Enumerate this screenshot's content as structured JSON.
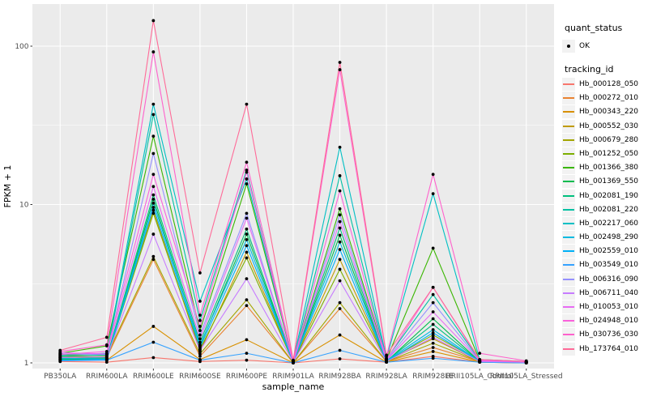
{
  "chart_data": {
    "type": "line",
    "title": "",
    "xlabel": "sample_name",
    "ylabel": "FPKM + 1",
    "y_scale": "log10",
    "y_ticks": [
      1,
      10,
      100
    ],
    "y_minor_ticks": [
      3.162,
      31.623
    ],
    "ylim": [
      0.95,
      160
    ],
    "grid": "on",
    "legend_position": "right",
    "categories": [
      "PB350LA",
      "RRIM600LA",
      "RRIM600LE",
      "RRIM600SE",
      "RRIM600PE",
      "RRIM901LA",
      "RRIM928BA",
      "RRIM928LA",
      "RRIM928LE",
      "RRII105LA_Control",
      "RRII105LA_Stressed"
    ],
    "series": [
      {
        "name": "Hb_000128_050",
        "color": "#F8766D",
        "values": [
          1.02,
          1.01,
          1.08,
          1.02,
          1.04,
          1.0,
          1.06,
          1.01,
          1.1,
          1.01,
          1.0
        ]
      },
      {
        "name": "Hb_000272_010",
        "color": "#EA8331",
        "values": [
          1.05,
          1.08,
          4.5,
          1.1,
          2.3,
          1.0,
          2.2,
          1.02,
          1.25,
          1.02,
          1.0
        ]
      },
      {
        "name": "Hb_000343_220",
        "color": "#D89000",
        "values": [
          1.08,
          1.04,
          1.7,
          1.05,
          1.4,
          1.0,
          1.5,
          1.01,
          1.18,
          1.01,
          1.0
        ]
      },
      {
        "name": "Hb_000552_030",
        "color": "#C09B00",
        "values": [
          1.1,
          1.09,
          9.2,
          1.18,
          5.0,
          1.01,
          4.5,
          1.03,
          1.42,
          1.02,
          1.01
        ]
      },
      {
        "name": "Hb_000679_280",
        "color": "#A3A500",
        "values": [
          1.12,
          1.11,
          4.7,
          1.14,
          2.5,
          1.0,
          2.4,
          1.02,
          1.33,
          1.02,
          1.0
        ]
      },
      {
        "name": "Hb_001252_050",
        "color": "#7CAE00",
        "values": [
          1.09,
          1.07,
          8.8,
          1.22,
          4.6,
          1.01,
          3.9,
          1.03,
          1.5,
          1.03,
          1.01
        ]
      },
      {
        "name": "Hb_001366_380",
        "color": "#39B600",
        "values": [
          1.15,
          1.28,
          27.0,
          1.6,
          13.5,
          1.02,
          9.4,
          1.05,
          5.3,
          1.04,
          1.02
        ]
      },
      {
        "name": "Hb_001369_550",
        "color": "#00BB4E",
        "values": [
          1.05,
          1.06,
          10.8,
          1.28,
          6.5,
          1.01,
          6.4,
          1.02,
          1.9,
          1.02,
          1.0
        ]
      },
      {
        "name": "Hb_002081_190",
        "color": "#00BF7D",
        "values": [
          1.06,
          1.08,
          11.5,
          1.35,
          7.0,
          1.01,
          7.1,
          1.03,
          1.75,
          1.02,
          1.01
        ]
      },
      {
        "name": "Hb_002081_220",
        "color": "#00C1A3",
        "values": [
          1.1,
          1.12,
          37.0,
          1.85,
          16.5,
          1.02,
          15.2,
          1.06,
          2.7,
          1.04,
          1.02
        ]
      },
      {
        "name": "Hb_002217_060",
        "color": "#00BFC4",
        "values": [
          1.12,
          1.15,
          43.0,
          2.45,
          14.5,
          1.03,
          23.0,
          1.07,
          11.7,
          1.05,
          1.02
        ]
      },
      {
        "name": "Hb_002498_290",
        "color": "#00BAE0",
        "values": [
          1.07,
          1.06,
          10.2,
          1.3,
          6.0,
          1.01,
          5.8,
          1.03,
          1.62,
          1.02,
          1.01
        ]
      },
      {
        "name": "Hb_002559_010",
        "color": "#00B0F6",
        "values": [
          1.04,
          1.05,
          9.6,
          1.25,
          5.5,
          1.01,
          5.2,
          1.02,
          1.55,
          1.02,
          1.0
        ]
      },
      {
        "name": "Hb_003549_010",
        "color": "#35A2FF",
        "values": [
          1.03,
          1.04,
          1.35,
          1.04,
          1.15,
          1.0,
          1.2,
          1.01,
          1.07,
          1.01,
          1.0
        ]
      },
      {
        "name": "Hb_006316_090",
        "color": "#9590FF",
        "values": [
          1.14,
          1.13,
          21.0,
          1.5,
          8.8,
          1.02,
          8.6,
          1.04,
          2.4,
          1.03,
          1.01
        ]
      },
      {
        "name": "Hb_006711_040",
        "color": "#C77CFF",
        "values": [
          1.08,
          1.09,
          6.5,
          1.2,
          3.4,
          1.01,
          3.3,
          1.02,
          1.45,
          1.02,
          1.01
        ]
      },
      {
        "name": "Hb_010053_010",
        "color": "#E76BF3",
        "values": [
          1.16,
          1.14,
          13.0,
          1.42,
          8.2,
          1.02,
          7.8,
          1.04,
          2.1,
          1.03,
          1.01
        ]
      },
      {
        "name": "Hb_024948_010",
        "color": "#FA62DB",
        "values": [
          1.13,
          1.18,
          15.5,
          1.7,
          16.0,
          1.02,
          12.2,
          1.05,
          3.0,
          1.04,
          1.02
        ]
      },
      {
        "name": "Hb_030736_030",
        "color": "#FF61CC",
        "values": [
          1.18,
          1.3,
          92.0,
          2.0,
          18.5,
          1.03,
          71.0,
          1.1,
          15.5,
          1.15,
          1.03
        ]
      },
      {
        "name": "Hb_173764_010",
        "color": "#FF6A98",
        "values": [
          1.2,
          1.45,
          145.0,
          3.7,
          43.0,
          1.04,
          79.0,
          1.12,
          3.0,
          1.05,
          1.02
        ]
      }
    ],
    "colors": {
      "panel_bg": "#EBEBEB",
      "grid": "#FFFFFF",
      "axis_text": "#4D4D4D",
      "axis_title": "#000000",
      "point": "#000000",
      "legend_key_bg": "#F2F2F2",
      "tick": "#333333"
    }
  },
  "legend": {
    "quant_status_title": "quant_status",
    "quant_status_items": [
      {
        "label": "OK",
        "symbol": "point"
      }
    ],
    "tracking_title": "tracking_id"
  }
}
